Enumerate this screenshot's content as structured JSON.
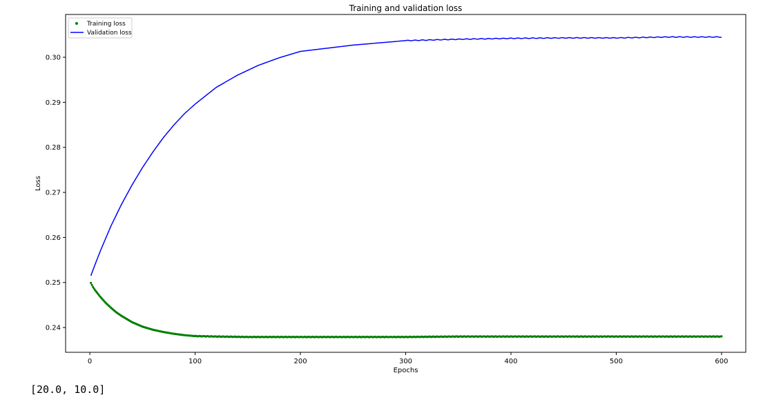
{
  "chart_data": {
    "type": "line",
    "title": "Training and validation loss",
    "xlabel": "Epochs",
    "ylabel": "Loss",
    "xlim": [
      -23,
      623
    ],
    "ylim": [
      0.2345,
      0.3095
    ],
    "xticks": [
      0,
      100,
      200,
      300,
      400,
      500,
      600
    ],
    "yticks": [
      0.24,
      0.25,
      0.26,
      0.27,
      0.28,
      0.29,
      0.3
    ],
    "ytick_labels": [
      "0.24",
      "0.25",
      "0.26",
      "0.27",
      "0.28",
      "0.29",
      "0.30"
    ],
    "legend_position": "top-left",
    "grid": false,
    "series": [
      {
        "name": "Training loss",
        "style": "points",
        "color": "#008000",
        "x": [
          1,
          3,
          5,
          8,
          10,
          15,
          20,
          25,
          30,
          35,
          40,
          45,
          50,
          60,
          70,
          80,
          90,
          100,
          120,
          150,
          200,
          250,
          300,
          350,
          400,
          450,
          500,
          550,
          600
        ],
        "y": [
          0.2499,
          0.249,
          0.2483,
          0.2474,
          0.2468,
          0.2455,
          0.2444,
          0.2434,
          0.2426,
          0.2419,
          0.2412,
          0.2407,
          0.2402,
          0.2395,
          0.239,
          0.2386,
          0.2383,
          0.2381,
          0.238,
          0.2379,
          0.2379,
          0.2379,
          0.2379,
          0.238,
          0.238,
          0.238,
          0.238,
          0.238,
          0.238
        ]
      },
      {
        "name": "Validation loss",
        "style": "line",
        "color": "#0000ff",
        "x": [
          1,
          5,
          10,
          20,
          30,
          40,
          50,
          60,
          70,
          80,
          90,
          100,
          120,
          140,
          160,
          180,
          200,
          250,
          300,
          350,
          400,
          450,
          500,
          550,
          600
        ],
        "y": [
          0.2515,
          0.254,
          0.257,
          0.2625,
          0.2673,
          0.2716,
          0.2755,
          0.279,
          0.2822,
          0.285,
          0.2875,
          0.2896,
          0.2933,
          0.296,
          0.2982,
          0.2999,
          0.3013,
          0.3027,
          0.3037,
          0.304,
          0.3042,
          0.3043,
          0.3043,
          0.3045,
          0.3045
        ]
      }
    ]
  },
  "output": {
    "text": "[20.0, 10.0]"
  }
}
